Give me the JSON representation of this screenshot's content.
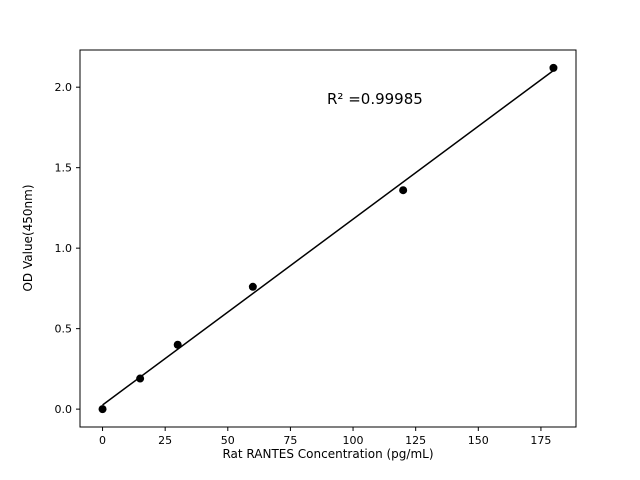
{
  "chart_data": {
    "type": "scatter",
    "title": "",
    "xlabel": "Rat RANTES Concentration (pg/mL)",
    "ylabel": "OD Value(450nm)",
    "annotation": "R² =0.99985",
    "x": [
      0,
      15,
      30,
      60,
      120,
      180
    ],
    "y": [
      0.0,
      0.19,
      0.4,
      0.76,
      1.36,
      2.12
    ],
    "xtick_values": [
      0,
      25,
      50,
      75,
      100,
      125,
      150,
      175
    ],
    "xticks": [
      "0",
      "25",
      "50",
      "75",
      "100",
      "125",
      "150",
      "175"
    ],
    "ytick_values": [
      0.0,
      0.5,
      1.0,
      1.5,
      2.0
    ],
    "yticks": [
      "0.0",
      "0.5",
      "1.0",
      "1.5",
      "2.0"
    ],
    "xlim": [
      -9,
      189
    ],
    "ylim": [
      -0.111,
      2.231
    ],
    "fit_line": true,
    "grid": false,
    "legend": "none",
    "marker_color": "#000000",
    "line_color": "#000000",
    "background_color": "#ffffff"
  }
}
